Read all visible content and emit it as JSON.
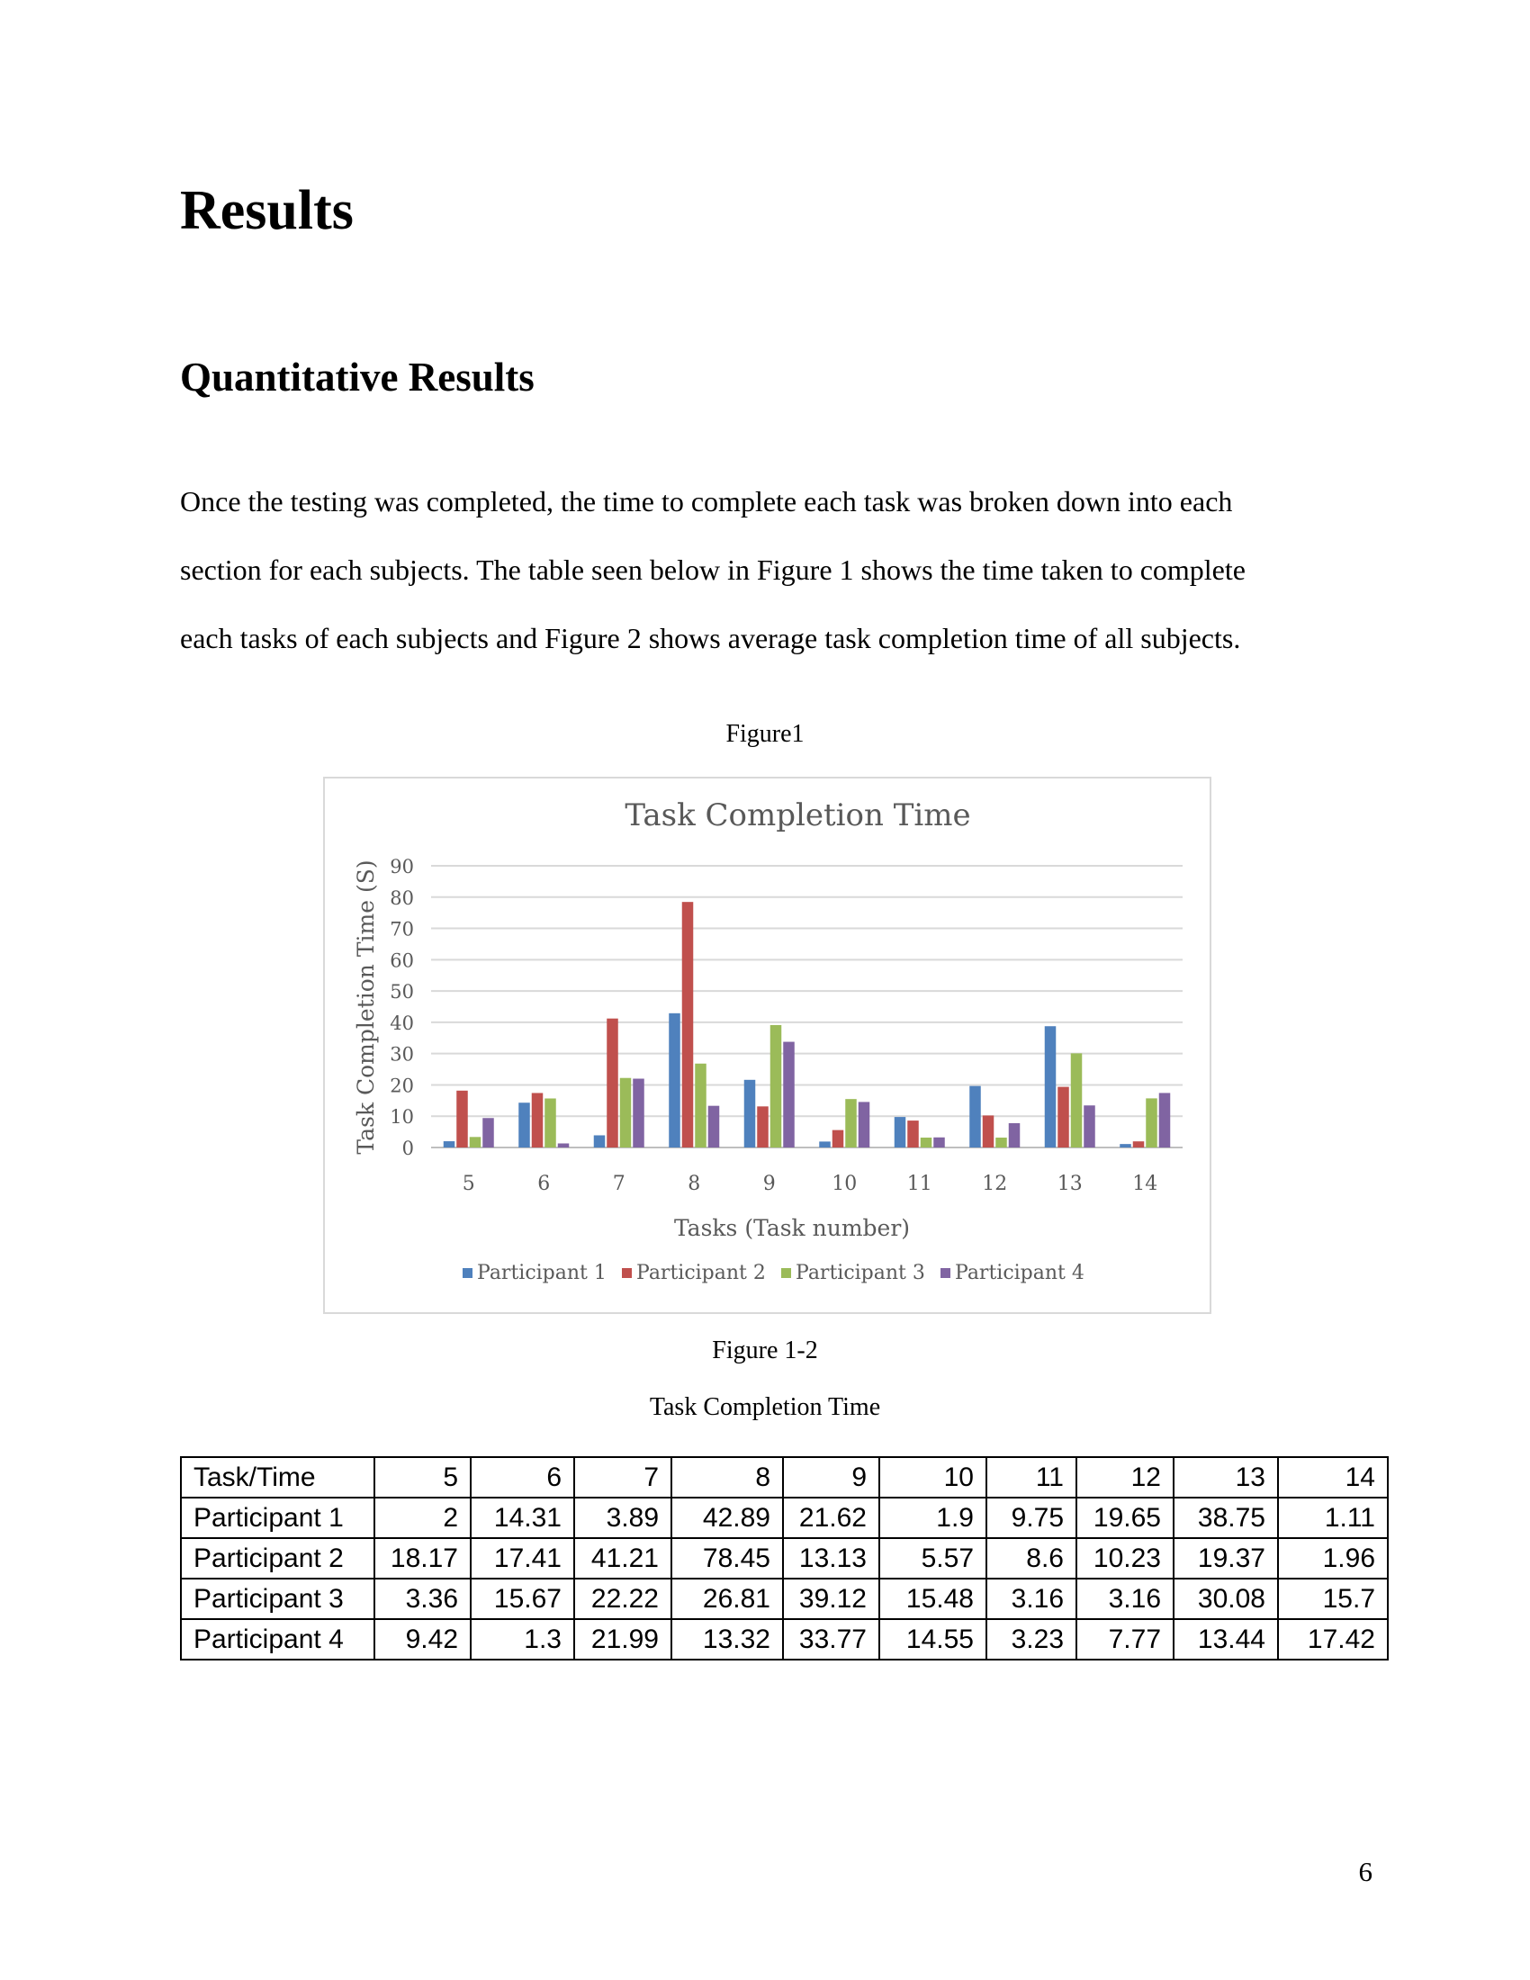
{
  "document": {
    "heading": "Results",
    "subheading": "Quantitative Results",
    "paragraph_lines": [
      "Once the testing was completed, the time to complete each task was broken down into each",
      "section for each subjects. The table seen below in Figure 1 shows the time taken to complete",
      "each tasks of each subjects and Figure 2 shows average task completion time of all subjects."
    ],
    "figure1_caption": "Figure1",
    "figure2_caption": "Figure 1-2",
    "table_caption": "Task Completion Time",
    "page_number": "6"
  },
  "chart_data": {
    "type": "bar",
    "title": "Task Completion Time",
    "xlabel": "Tasks (Task number)",
    "ylabel": "Task Completion Time (S)",
    "categories": [
      "5",
      "6",
      "7",
      "8",
      "9",
      "10",
      "11",
      "12",
      "13",
      "14"
    ],
    "ylim": [
      0,
      90
    ],
    "yticks": [
      "0",
      "10",
      "20",
      "30",
      "40",
      "50",
      "60",
      "70",
      "80",
      "90"
    ],
    "grid": true,
    "legend_position": "bottom",
    "series": [
      {
        "name": "Participant 1",
        "color": "#4f81bd",
        "values": [
          2,
          14.31,
          3.89,
          42.89,
          21.62,
          1.9,
          9.75,
          19.65,
          38.75,
          1.11
        ]
      },
      {
        "name": "Participant 2",
        "color": "#c0504d",
        "values": [
          18.17,
          17.41,
          41.21,
          78.45,
          13.13,
          5.57,
          8.6,
          10.23,
          19.37,
          1.96
        ]
      },
      {
        "name": "Participant 3",
        "color": "#9bbb59",
        "values": [
          3.36,
          15.67,
          22.22,
          26.81,
          39.12,
          15.48,
          3.16,
          3.16,
          30.08,
          15.7
        ]
      },
      {
        "name": "Participant 4",
        "color": "#8064a2",
        "values": [
          9.42,
          1.3,
          21.99,
          13.32,
          33.77,
          14.55,
          3.23,
          7.77,
          13.44,
          17.42
        ]
      }
    ]
  },
  "table": {
    "header": [
      "Task/Time",
      "5",
      "6",
      "7",
      "8",
      "9",
      "10",
      "11",
      "12",
      "13",
      "14"
    ],
    "rows": [
      [
        "Participant 1",
        "2",
        "14.31",
        "3.89",
        "42.89",
        "21.62",
        "1.9",
        "9.75",
        "19.65",
        "38.75",
        "1.11"
      ],
      [
        "Participant 2",
        "18.17",
        "17.41",
        "41.21",
        "78.45",
        "13.13",
        "5.57",
        "8.6",
        "10.23",
        "19.37",
        "1.96"
      ],
      [
        "Participant 3",
        "3.36",
        "15.67",
        "22.22",
        "26.81",
        "39.12",
        "15.48",
        "3.16",
        "3.16",
        "30.08",
        "15.7"
      ],
      [
        "Participant 4",
        "9.42",
        "1.3",
        "21.99",
        "13.32",
        "33.77",
        "14.55",
        "3.23",
        "7.77",
        "13.44",
        "17.42"
      ]
    ]
  }
}
